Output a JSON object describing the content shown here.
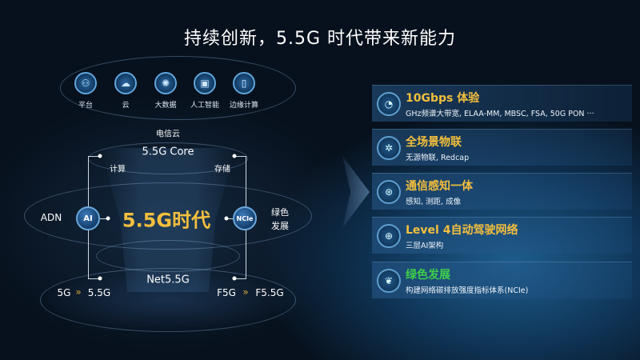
{
  "title": "持续创新，5.5G 时代带来新能力",
  "top_icons": [
    {
      "icon": "platform-icon",
      "label": "平台"
    },
    {
      "icon": "cloud-icon",
      "label": "云"
    },
    {
      "icon": "big-data-icon",
      "label": "大数据"
    },
    {
      "icon": "ai-chip-icon",
      "label": "人工智能"
    },
    {
      "icon": "edge-computing-icon",
      "label": "边缘计算"
    }
  ],
  "diagram": {
    "telecom_cloud": "电信云",
    "core": "5.5G Core",
    "compute": "计算",
    "storage": "存储",
    "era": "5.5G时代",
    "adn": "ADN",
    "ai_node": "AI",
    "ncie_node": "NCIe",
    "green_1": "绿色",
    "green_2": "发展",
    "net": "Net5.5G",
    "left_from": "5G",
    "left_to": "5.5G",
    "right_from": "F5G",
    "right_to": "F5.5G",
    "chevrons": "»"
  },
  "cards": [
    {
      "icon": "speed-gauge-icon",
      "title": "10Gbps 体验",
      "subtitle": "GHz频谱大带宽, ELAA-MM, MBSC, FSA, 50G PON ···",
      "color": "#f4bf3d"
    },
    {
      "icon": "iot-network-icon",
      "title": "全场景物联",
      "subtitle": "无源物联, Redcap",
      "color": "#f4bf3d"
    },
    {
      "icon": "sensing-icon",
      "title": "通信感知一体",
      "subtitle": "感知, 测距, 成像",
      "color": "#f4bf3d"
    },
    {
      "icon": "globe-network-icon",
      "title": "Level 4自动驾驶网络",
      "subtitle": "三层AI架构",
      "color": "#f4bf3d"
    },
    {
      "icon": "leaf-icon",
      "title": "绿色发展",
      "subtitle": "构建网络碳排放强度指标体系(NCIe)",
      "color": "#3fcf4a"
    }
  ]
}
